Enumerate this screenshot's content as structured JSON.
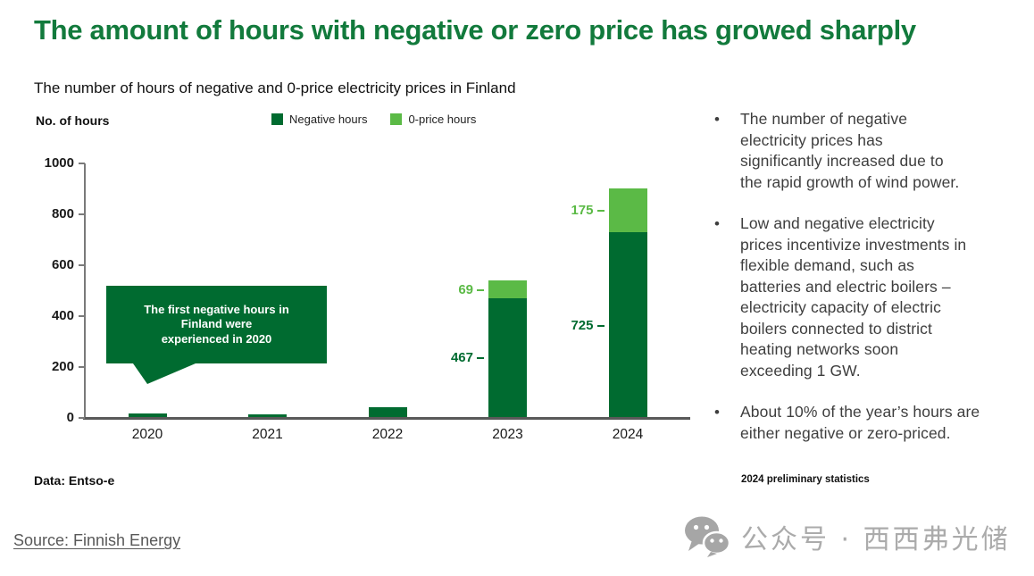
{
  "header": {
    "title": "The amount of hours with negative or zero price has growed sharply",
    "subtitle": "The number of hours of negative and 0-price electricity prices in Finland"
  },
  "chart": {
    "y_axis_unit": "No. of hours",
    "legend": [
      {
        "label": "Negative hours",
        "color": "#006b30"
      },
      {
        "label": "0-price hours",
        "color": "#5bba46"
      }
    ],
    "annotation": "The first negative hours in Finland were\nexperienced in 2020",
    "data_note": "Data: Entso-e"
  },
  "chart_data": {
    "type": "bar",
    "stacked": true,
    "title": "The number of hours of negative and 0-price electricity prices in Finland",
    "ylabel": "No. of hours",
    "ylim": [
      0,
      1000
    ],
    "yticks": [
      0,
      200,
      400,
      600,
      800,
      1000
    ],
    "grid": false,
    "legend_position": "top",
    "categories": [
      "2020",
      "2021",
      "2022",
      "2023",
      "2024"
    ],
    "series": [
      {
        "name": "Negative hours",
        "color": "#006b30",
        "values": [
          14,
          10,
          38,
          467,
          725
        ]
      },
      {
        "name": "0-price hours",
        "color": "#5bba46",
        "values": [
          0,
          0,
          0,
          69,
          175
        ]
      }
    ],
    "data_labels": [
      {
        "index": 3,
        "negative": "467",
        "zero": "69"
      },
      {
        "index": 4,
        "negative": "725",
        "zero": "175"
      }
    ]
  },
  "insights": {
    "bullets": [
      "The number of negative\nelectricity prices has\nsignificantly increased due to\nthe rapid growth of wind power.",
      "Low and negative electricity\nprices incentivize investments in\nflexible demand, such as\nbatteries and electric boilers –\nelectricity capacity of electric\nboilers connected to district\nheating networks soon\nexceeding 1 GW.",
      "About 10% of the year’s hours are\neither negative or zero-priced."
    ],
    "bullet_marker": "•",
    "footnote": "2024 preliminary statistics"
  },
  "footer": {
    "source_link": "Source: Finnish Energy",
    "watermark_text": "公众号 · 西西弗光储",
    "watermark_icon": "wechat-icon"
  },
  "colors": {
    "title_green": "#127a3c",
    "dark_green": "#006b30",
    "light_green": "#5bba46",
    "bullet_text": "#3e3e3e",
    "axis_gray": "#595959",
    "watermark_gray": "#ababab"
  }
}
